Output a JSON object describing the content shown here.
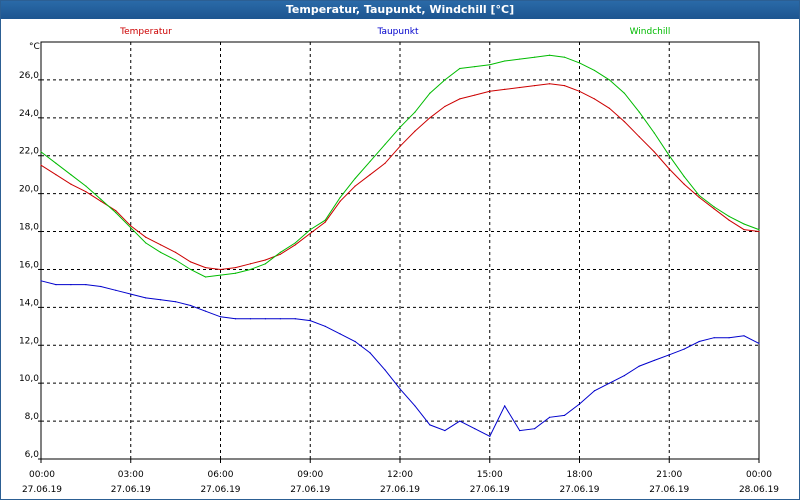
{
  "window": {
    "title": "Temperatur, Taupunkt, Windchill [°C]"
  },
  "chart_data": {
    "type": "line",
    "title": "Temperatur, Taupunkt, Windchill [°C]",
    "ylabel": "°C",
    "xlabel": "",
    "ylim": [
      6.0,
      28.0
    ],
    "xlim": [
      0,
      24
    ],
    "grid": true,
    "legend_placement": "top",
    "yticks": [
      "6,0",
      "8,0",
      "10,0",
      "12,0",
      "14,0",
      "16,0",
      "18,0",
      "20,0",
      "22,0",
      "24,0",
      "26,0"
    ],
    "xticks": [
      {
        "time": "00:00",
        "date": "27.06.19"
      },
      {
        "time": "03:00",
        "date": "27.06.19"
      },
      {
        "time": "06:00",
        "date": "27.06.19"
      },
      {
        "time": "09:00",
        "date": "27.06.19"
      },
      {
        "time": "12:00",
        "date": "27.06.19"
      },
      {
        "time": "15:00",
        "date": "27.06.19"
      },
      {
        "time": "18:00",
        "date": "27.06.19"
      },
      {
        "time": "21:00",
        "date": "27.06.19"
      },
      {
        "time": "00:00",
        "date": "28.06.19"
      }
    ],
    "series": [
      {
        "name": "Temperatur",
        "color": "#cc0000",
        "x": [
          0,
          0.5,
          1,
          1.5,
          2,
          2.5,
          3,
          3.5,
          4,
          4.5,
          5,
          5.5,
          6,
          6.5,
          7,
          7.5,
          8,
          8.5,
          9,
          9.5,
          10,
          10.5,
          11,
          11.5,
          12,
          12.5,
          13,
          13.5,
          14,
          14.5,
          15,
          15.5,
          16,
          16.5,
          17,
          17.5,
          18,
          18.5,
          19,
          19.5,
          20,
          20.5,
          21,
          21.5,
          22,
          22.5,
          23,
          23.5,
          24
        ],
        "values": [
          21.5,
          21.0,
          20.5,
          20.1,
          19.6,
          19.1,
          18.3,
          17.7,
          17.3,
          16.9,
          16.4,
          16.1,
          16.0,
          16.1,
          16.3,
          16.5,
          16.8,
          17.3,
          17.9,
          18.5,
          19.6,
          20.4,
          21.0,
          21.6,
          22.5,
          23.3,
          24.0,
          24.6,
          25.0,
          25.2,
          25.4,
          25.5,
          25.6,
          25.7,
          25.8,
          25.7,
          25.4,
          25.0,
          24.5,
          23.8,
          23.0,
          22.2,
          21.3,
          20.5,
          19.8,
          19.2,
          18.6,
          18.1,
          18.0
        ]
      },
      {
        "name": "Taupunkt",
        "color": "#0000cc",
        "x": [
          0,
          0.5,
          1,
          1.5,
          2,
          2.5,
          3,
          3.5,
          4,
          4.5,
          5,
          5.5,
          6,
          6.5,
          7,
          7.5,
          8,
          8.5,
          9,
          9.5,
          10,
          10.5,
          11,
          11.5,
          12,
          12.5,
          13,
          13.5,
          14,
          14.5,
          15,
          15.5,
          16,
          16.5,
          17,
          17.5,
          18,
          18.5,
          19,
          19.5,
          20,
          20.5,
          21,
          21.5,
          22,
          22.5,
          23,
          23.5,
          24
        ],
        "values": [
          15.4,
          15.2,
          15.2,
          15.2,
          15.1,
          14.9,
          14.7,
          14.5,
          14.4,
          14.3,
          14.1,
          13.8,
          13.5,
          13.4,
          13.4,
          13.4,
          13.4,
          13.4,
          13.3,
          13.0,
          12.6,
          12.2,
          11.6,
          10.7,
          9.7,
          8.8,
          7.8,
          7.5,
          8.0,
          7.6,
          7.2,
          8.8,
          7.5,
          7.6,
          8.2,
          8.3,
          8.9,
          9.6,
          10.0,
          10.4,
          10.9,
          11.2,
          11.5,
          11.8,
          12.2,
          12.4,
          12.4,
          12.5,
          12.1
        ]
      },
      {
        "name": "Windchill",
        "color": "#00bb00",
        "x": [
          0,
          0.5,
          1,
          1.5,
          2,
          2.5,
          3,
          3.5,
          4,
          4.5,
          5,
          5.5,
          6,
          6.5,
          7,
          7.5,
          8,
          8.5,
          9,
          9.5,
          10,
          10.5,
          11,
          11.5,
          12,
          12.5,
          13,
          13.5,
          14,
          14.5,
          15,
          15.5,
          16,
          16.5,
          17,
          17.5,
          18,
          18.5,
          19,
          19.5,
          20,
          20.5,
          21,
          21.5,
          22,
          22.5,
          23,
          23.5,
          24
        ],
        "values": [
          22.2,
          21.6,
          21.0,
          20.4,
          19.7,
          19.0,
          18.2,
          17.4,
          16.9,
          16.5,
          16.0,
          15.6,
          15.7,
          15.8,
          16.0,
          16.3,
          16.9,
          17.4,
          18.1,
          18.6,
          19.8,
          20.8,
          21.7,
          22.6,
          23.5,
          24.3,
          25.3,
          26.0,
          26.6,
          26.7,
          26.8,
          27.0,
          27.1,
          27.2,
          27.3,
          27.2,
          26.9,
          26.5,
          26.0,
          25.3,
          24.3,
          23.2,
          22.0,
          20.9,
          19.9,
          19.3,
          18.8,
          18.4,
          18.1
        ]
      }
    ]
  }
}
